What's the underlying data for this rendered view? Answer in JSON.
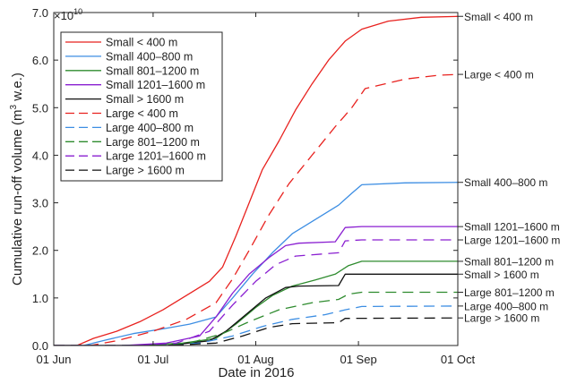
{
  "chart_data": {
    "type": "line",
    "xlabel": "Date in 2016",
    "ylabel_main": "Cumulative run-off volume (m",
    "ylabel_sup": "3",
    "ylabel_end": " w.e.)",
    "y_exponent_base": "×10",
    "y_exponent_power": "10",
    "xlim": [
      "2016-06-01",
      "2016-10-01"
    ],
    "ylim": [
      0,
      7.0
    ],
    "y_multiplier": 10000000000,
    "x_ticks": [
      {
        "date": "2016-06-01",
        "label": "01 Jun"
      },
      {
        "date": "2016-07-01",
        "label": "01 Jul"
      },
      {
        "date": "2016-08-01",
        "label": "01 Aug"
      },
      {
        "date": "2016-09-01",
        "label": "01 Sep"
      },
      {
        "date": "2016-10-01",
        "label": "01 Oct"
      }
    ],
    "y_ticks": [
      0.0,
      1.0,
      2.0,
      3.0,
      4.0,
      5.0,
      6.0,
      7.0
    ],
    "y_tick_labels": [
      "0.0",
      "1.0",
      "2.0",
      "3.0",
      "4.0",
      "5.0",
      "6.0",
      "7.0"
    ],
    "legend_position": "top-left",
    "grid": false,
    "series": [
      {
        "name": "Small < 400 m",
        "right_label": "Small < 400 m",
        "color": "#e8221f",
        "dash": "solid",
        "points": [
          [
            "2016-06-01",
            0
          ],
          [
            "2016-06-08",
            0
          ],
          [
            "2016-06-13",
            0.15
          ],
          [
            "2016-06-20",
            0.3
          ],
          [
            "2016-06-27",
            0.5
          ],
          [
            "2016-07-04",
            0.75
          ],
          [
            "2016-07-11",
            1.05
          ],
          [
            "2016-07-18",
            1.35
          ],
          [
            "2016-07-22",
            1.65
          ],
          [
            "2016-07-26",
            2.3
          ],
          [
            "2016-07-30",
            3.0
          ],
          [
            "2016-08-03",
            3.7
          ],
          [
            "2016-08-08",
            4.3
          ],
          [
            "2016-08-13",
            4.95
          ],
          [
            "2016-08-18",
            5.5
          ],
          [
            "2016-08-23",
            6.0
          ],
          [
            "2016-08-28",
            6.4
          ],
          [
            "2016-09-02",
            6.65
          ],
          [
            "2016-09-10",
            6.82
          ],
          [
            "2016-09-20",
            6.9
          ],
          [
            "2016-10-01",
            6.92
          ]
        ]
      },
      {
        "name": "Small 400-800 m",
        "right_label": "Small 400–800 m",
        "color": "#3d8ee3",
        "dash": "solid",
        "points": [
          [
            "2016-06-01",
            0
          ],
          [
            "2016-06-10",
            0
          ],
          [
            "2016-06-17",
            0.12
          ],
          [
            "2016-06-25",
            0.25
          ],
          [
            "2016-07-04",
            0.35
          ],
          [
            "2016-07-12",
            0.45
          ],
          [
            "2016-07-20",
            0.6
          ],
          [
            "2016-07-25",
            1.0
          ],
          [
            "2016-07-31",
            1.5
          ],
          [
            "2016-08-06",
            1.95
          ],
          [
            "2016-08-12",
            2.35
          ],
          [
            "2016-08-19",
            2.65
          ],
          [
            "2016-08-26",
            2.95
          ],
          [
            "2016-08-30",
            3.2
          ],
          [
            "2016-09-02",
            3.38
          ],
          [
            "2016-09-15",
            3.42
          ],
          [
            "2016-10-01",
            3.43
          ]
        ]
      },
      {
        "name": "Small 801-1200 m",
        "right_label": "Small 801–1200 m",
        "color": "#2e8b2e",
        "dash": "solid",
        "points": [
          [
            "2016-06-01",
            0
          ],
          [
            "2016-06-25",
            0
          ],
          [
            "2016-07-10",
            0.05
          ],
          [
            "2016-07-20",
            0.15
          ],
          [
            "2016-07-26",
            0.45
          ],
          [
            "2016-08-01",
            0.8
          ],
          [
            "2016-08-06",
            1.05
          ],
          [
            "2016-08-12",
            1.25
          ],
          [
            "2016-08-19",
            1.38
          ],
          [
            "2016-08-25",
            1.5
          ],
          [
            "2016-08-29",
            1.68
          ],
          [
            "2016-09-02",
            1.77
          ],
          [
            "2016-10-01",
            1.77
          ]
        ]
      },
      {
        "name": "Small 1201-1600 m",
        "right_label": "Small 1201–1600 m",
        "color": "#8a1fd1",
        "dash": "solid",
        "points": [
          [
            "2016-06-01",
            0
          ],
          [
            "2016-06-22",
            0
          ],
          [
            "2016-07-05",
            0.05
          ],
          [
            "2016-07-15",
            0.2
          ],
          [
            "2016-07-20",
            0.6
          ],
          [
            "2016-07-25",
            1.1
          ],
          [
            "2016-07-30",
            1.5
          ],
          [
            "2016-08-05",
            1.85
          ],
          [
            "2016-08-10",
            2.1
          ],
          [
            "2016-08-14",
            2.15
          ],
          [
            "2016-08-25",
            2.18
          ],
          [
            "2016-08-28",
            2.48
          ],
          [
            "2016-09-02",
            2.5
          ],
          [
            "2016-10-01",
            2.5
          ]
        ]
      },
      {
        "name": "Small > 1600 m",
        "right_label": "Small > 1600 m",
        "color": "#111111",
        "dash": "solid",
        "points": [
          [
            "2016-06-01",
            0
          ],
          [
            "2016-07-05",
            0
          ],
          [
            "2016-07-18",
            0.1
          ],
          [
            "2016-07-23",
            0.3
          ],
          [
            "2016-07-29",
            0.65
          ],
          [
            "2016-08-04",
            1.0
          ],
          [
            "2016-08-10",
            1.22
          ],
          [
            "2016-08-14",
            1.25
          ],
          [
            "2016-08-26",
            1.26
          ],
          [
            "2016-08-28",
            1.5
          ],
          [
            "2016-10-01",
            1.5
          ]
        ]
      },
      {
        "name": "Large < 400 m",
        "right_label": "Large < 400 m",
        "color": "#e8221f",
        "dash": "12,7",
        "points": [
          [
            "2016-06-01",
            0
          ],
          [
            "2016-06-12",
            0
          ],
          [
            "2016-06-20",
            0.1
          ],
          [
            "2016-07-01",
            0.3
          ],
          [
            "2016-07-11",
            0.55
          ],
          [
            "2016-07-20",
            0.9
          ],
          [
            "2016-07-25",
            1.4
          ],
          [
            "2016-07-30",
            2.0
          ],
          [
            "2016-08-05",
            2.75
          ],
          [
            "2016-08-11",
            3.4
          ],
          [
            "2016-08-18",
            4.0
          ],
          [
            "2016-08-25",
            4.6
          ],
          [
            "2016-08-30",
            5.0
          ],
          [
            "2016-09-03",
            5.4
          ],
          [
            "2016-09-15",
            5.6
          ],
          [
            "2016-09-25",
            5.68
          ],
          [
            "2016-10-01",
            5.7
          ]
        ]
      },
      {
        "name": "Large 400-800 m",
        "right_label": "Large 400–800 m",
        "color": "#3d8ee3",
        "dash": "12,7",
        "points": [
          [
            "2016-06-01",
            0
          ],
          [
            "2016-07-01",
            0
          ],
          [
            "2016-07-15",
            0.05
          ],
          [
            "2016-07-25",
            0.2
          ],
          [
            "2016-08-03",
            0.4
          ],
          [
            "2016-08-12",
            0.55
          ],
          [
            "2016-08-22",
            0.65
          ],
          [
            "2016-08-28",
            0.75
          ],
          [
            "2016-09-02",
            0.82
          ],
          [
            "2016-10-01",
            0.83
          ]
        ]
      },
      {
        "name": "Large 801-1200 m",
        "right_label": "Large 801–1200 m",
        "color": "#2e8b2e",
        "dash": "12,7",
        "points": [
          [
            "2016-06-01",
            0
          ],
          [
            "2016-06-28",
            0
          ],
          [
            "2016-07-12",
            0.05
          ],
          [
            "2016-07-22",
            0.25
          ],
          [
            "2016-07-30",
            0.5
          ],
          [
            "2016-08-08",
            0.75
          ],
          [
            "2016-08-18",
            0.9
          ],
          [
            "2016-08-26",
            0.97
          ],
          [
            "2016-08-29",
            1.08
          ],
          [
            "2016-09-02",
            1.12
          ],
          [
            "2016-10-01",
            1.12
          ]
        ]
      },
      {
        "name": "Large 1201-1600 m",
        "right_label": "Large 1201–1600 m",
        "color": "#8a1fd1",
        "dash": "12,7",
        "points": [
          [
            "2016-06-01",
            0
          ],
          [
            "2016-06-25",
            0
          ],
          [
            "2016-07-08",
            0.05
          ],
          [
            "2016-07-18",
            0.3
          ],
          [
            "2016-07-25",
            0.85
          ],
          [
            "2016-08-01",
            1.35
          ],
          [
            "2016-08-07",
            1.7
          ],
          [
            "2016-08-13",
            1.88
          ],
          [
            "2016-08-26",
            1.95
          ],
          [
            "2016-08-28",
            2.2
          ],
          [
            "2016-09-02",
            2.22
          ],
          [
            "2016-10-01",
            2.22
          ]
        ]
      },
      {
        "name": "Large > 1600 m",
        "right_label": "Large > 1600 m",
        "color": "#111111",
        "dash": "12,7",
        "points": [
          [
            "2016-06-01",
            0
          ],
          [
            "2016-07-05",
            0
          ],
          [
            "2016-07-20",
            0.05
          ],
          [
            "2016-07-28",
            0.2
          ],
          [
            "2016-08-05",
            0.38
          ],
          [
            "2016-08-12",
            0.46
          ],
          [
            "2016-08-26",
            0.48
          ],
          [
            "2016-08-28",
            0.57
          ],
          [
            "2016-10-01",
            0.58
          ]
        ]
      }
    ]
  }
}
